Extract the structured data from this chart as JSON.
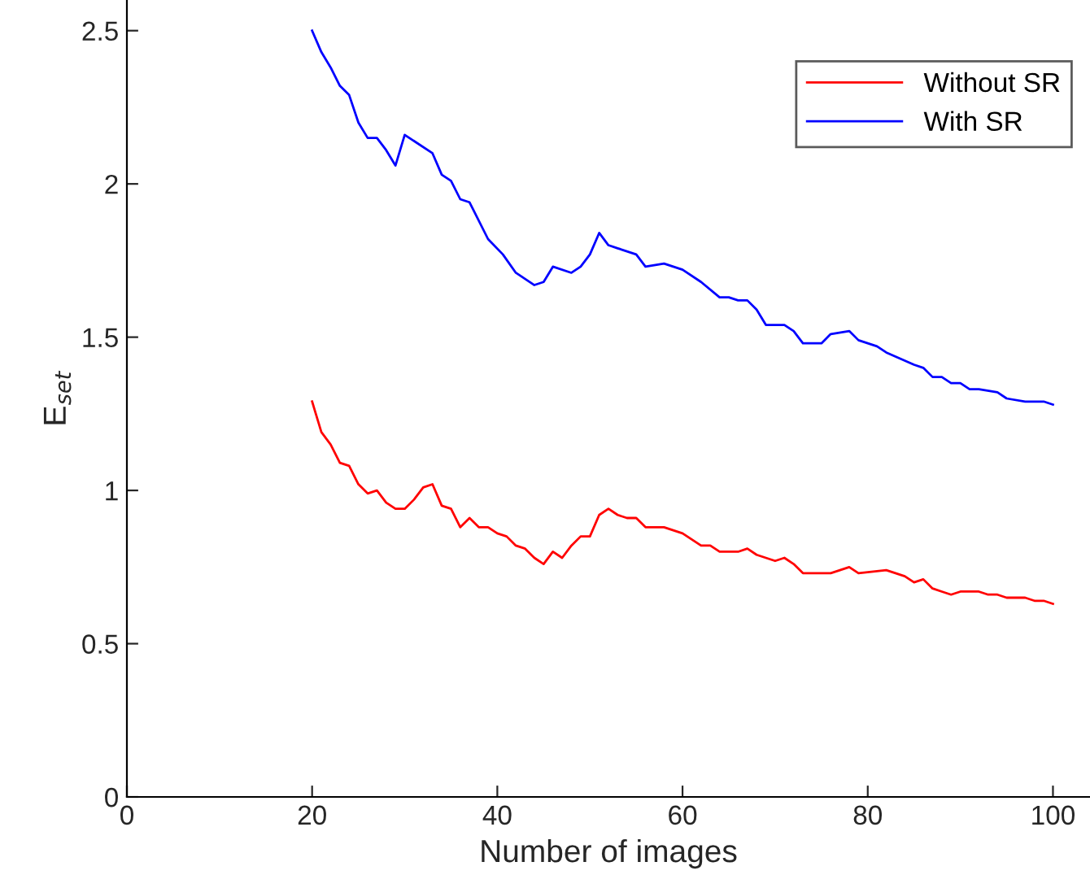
{
  "chart_data": {
    "type": "line",
    "xlabel": "Number of images",
    "ylabel": "E$_{set}$",
    "xlim": [
      0,
      104
    ],
    "ylim": [
      0,
      2.6
    ],
    "xticks": [
      0,
      20,
      40,
      60,
      80,
      100
    ],
    "yticks": [
      0,
      0.5,
      1,
      1.5,
      2,
      2.5
    ],
    "legend": "top right",
    "grid": false,
    "marker": "none",
    "line_style": "solid",
    "series": [
      {
        "name": "Without SR",
        "color": "#ff0000",
        "x": [
          20,
          21,
          22,
          23,
          24,
          25,
          26,
          27,
          28,
          29,
          30,
          31,
          32,
          33,
          34,
          35,
          36,
          37,
          38,
          39,
          40,
          41,
          42,
          43,
          44,
          45,
          46,
          47,
          48,
          49,
          50,
          51,
          52,
          53,
          54,
          55,
          56,
          58,
          60,
          62,
          63,
          64,
          66,
          67,
          68,
          69,
          70,
          71,
          72,
          73,
          76,
          77,
          78,
          79,
          82,
          84,
          85,
          86,
          87,
          88,
          89,
          90,
          92,
          93,
          94,
          95,
          97,
          98,
          99,
          100
        ],
        "values": [
          1.29,
          1.19,
          1.15,
          1.09,
          1.08,
          1.02,
          0.99,
          1.0,
          0.96,
          0.94,
          0.94,
          0.97,
          1.01,
          1.02,
          0.95,
          0.94,
          0.88,
          0.91,
          0.88,
          0.88,
          0.86,
          0.85,
          0.82,
          0.81,
          0.78,
          0.76,
          0.8,
          0.78,
          0.82,
          0.85,
          0.85,
          0.92,
          0.94,
          0.92,
          0.91,
          0.91,
          0.88,
          0.88,
          0.86,
          0.82,
          0.82,
          0.8,
          0.8,
          0.81,
          0.79,
          0.78,
          0.77,
          0.78,
          0.76,
          0.73,
          0.73,
          0.74,
          0.75,
          0.73,
          0.74,
          0.72,
          0.7,
          0.71,
          0.68,
          0.67,
          0.66,
          0.67,
          0.67,
          0.66,
          0.66,
          0.65,
          0.65,
          0.64,
          0.64,
          0.63
        ]
      },
      {
        "name": "With SR",
        "color": "#0000ff",
        "x": [
          20,
          21,
          22,
          23,
          24,
          25,
          26,
          27,
          28,
          29,
          30,
          33,
          34,
          35,
          36,
          37,
          39,
          40.6,
          42,
          44,
          45,
          46,
          48,
          49,
          50,
          51,
          52,
          53,
          55,
          56,
          58,
          60,
          62,
          64,
          65,
          66,
          67,
          68,
          69,
          71,
          72,
          73,
          75,
          76,
          78,
          79,
          81,
          82,
          85,
          86,
          87,
          88,
          89,
          90,
          91,
          92,
          94,
          95,
          97,
          98,
          99,
          100
        ],
        "values": [
          2.5,
          2.43,
          2.38,
          2.32,
          2.29,
          2.2,
          2.15,
          2.15,
          2.11,
          2.06,
          2.16,
          2.1,
          2.03,
          2.01,
          1.95,
          1.94,
          1.82,
          1.77,
          1.71,
          1.67,
          1.68,
          1.73,
          1.71,
          1.73,
          1.77,
          1.84,
          1.8,
          1.79,
          1.77,
          1.73,
          1.74,
          1.72,
          1.68,
          1.63,
          1.63,
          1.62,
          1.62,
          1.59,
          1.54,
          1.54,
          1.52,
          1.48,
          1.48,
          1.51,
          1.52,
          1.49,
          1.47,
          1.45,
          1.41,
          1.4,
          1.37,
          1.37,
          1.35,
          1.35,
          1.33,
          1.33,
          1.32,
          1.3,
          1.29,
          1.29,
          1.29,
          1.28
        ]
      }
    ]
  }
}
